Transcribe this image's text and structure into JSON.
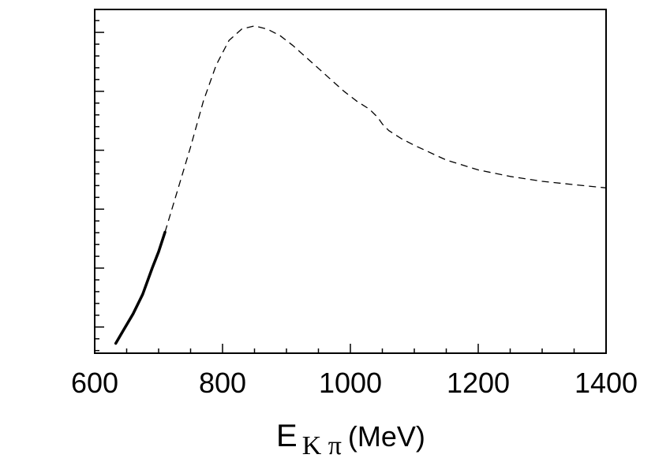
{
  "chart_data": {
    "type": "line",
    "xlim": [
      600,
      1400
    ],
    "x_ticks": [
      600,
      800,
      1000,
      1200,
      1400
    ],
    "x_minor_step": 50,
    "y_ticks": [
      0.08,
      0.26,
      0.44,
      0.62,
      0.8,
      0.98
    ],
    "y_minor_step": 0.036,
    "ylim": [
      0,
      1.05
    ],
    "xlabel": {
      "main": "E",
      "sub": "K π",
      "unit": "(MeV)"
    },
    "grid": false,
    "series": [
      {
        "style": "solid",
        "x": [
          633,
          645,
          660,
          675,
          690,
          700,
          710
        ],
        "y": [
          0.03,
          0.07,
          0.12,
          0.18,
          0.26,
          0.31,
          0.37
        ]
      },
      {
        "style": "dashed",
        "x": [
          710,
          730,
          750,
          770,
          790,
          810,
          830,
          850,
          870,
          890,
          910,
          930,
          950,
          970,
          990,
          1010,
          1030,
          1043,
          1050,
          1060,
          1080,
          1100,
          1150,
          1200,
          1250,
          1300,
          1350,
          1400
        ],
        "y": [
          0.37,
          0.5,
          0.63,
          0.77,
          0.88,
          0.955,
          0.99,
          1.0,
          0.99,
          0.97,
          0.94,
          0.905,
          0.87,
          0.835,
          0.8,
          0.77,
          0.745,
          0.72,
          0.7,
          0.68,
          0.655,
          0.635,
          0.59,
          0.56,
          0.54,
          0.525,
          0.515,
          0.505
        ]
      }
    ]
  }
}
